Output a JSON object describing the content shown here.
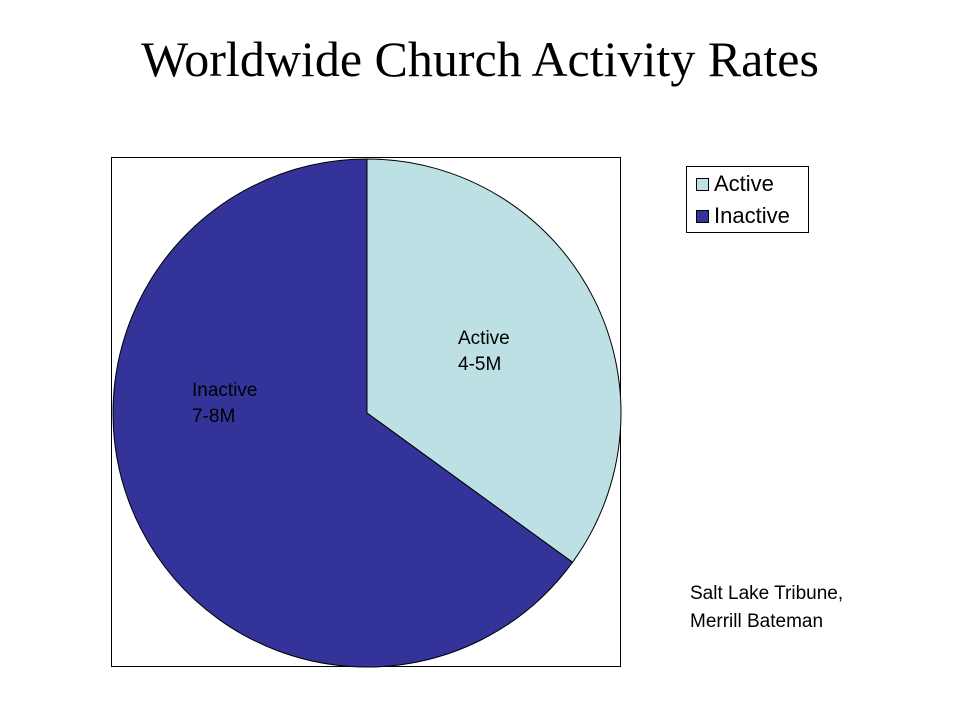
{
  "title": "Worldwide Church Activity Rates",
  "source": [
    "Salt Lake Tribune,",
    "Merrill Bateman"
  ],
  "chart_data": {
    "type": "pie",
    "title": "Worldwide Church Activity Rates",
    "start_angle_deg": 0,
    "direction": "clockwise",
    "legend_position": "top-right",
    "slices": [
      {
        "name": "Active",
        "value": 35,
        "label_lines": [
          "Active",
          "4-5M"
        ],
        "color": "#BCE0E3"
      },
      {
        "name": "Inactive",
        "value": 65,
        "label_lines": [
          "Inactive",
          "7-8M"
        ],
        "color": "#333399"
      }
    ]
  }
}
